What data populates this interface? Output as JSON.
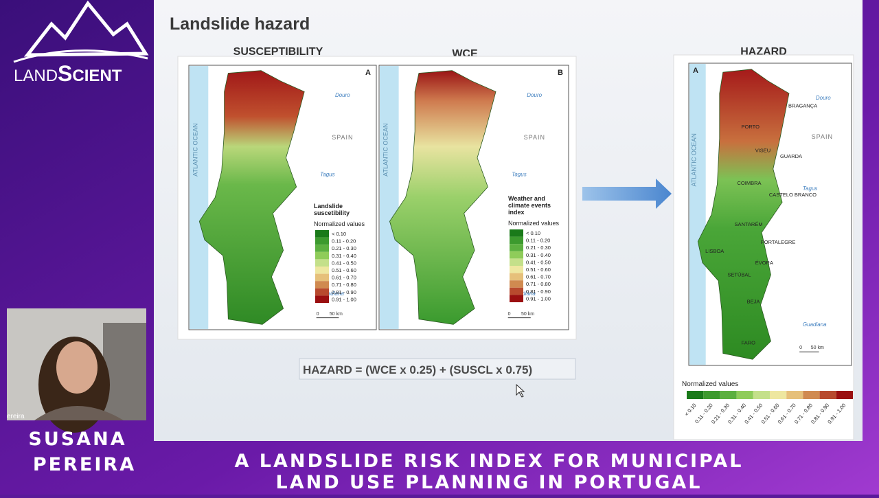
{
  "logo": {
    "part1": "LAND",
    "part2": "S",
    "part3": "CIENT"
  },
  "presenter": {
    "video_label": "ereira",
    "first_name": "SUSANA",
    "last_name": "PEREIRA"
  },
  "banner": {
    "line1": "A LANDSLIDE RISK INDEX FOR MUNICIPAL",
    "line2": "LAND USE PLANNING IN PORTUGAL"
  },
  "slide": {
    "title": "Landslide hazard",
    "formula": "HAZARD = (WCE x 0.25) + (SUSCL x 0.75)",
    "legend_classes": [
      "< 0.10",
      "0.11 - 0.20",
      "0.21 - 0.30",
      "0.31 - 0.40",
      "0.41 - 0.50",
      "0.51 - 0.60",
      "0.61 - 0.70",
      "0.71 - 0.80",
      "0.81 - 0.90",
      "0.91 - 1.00"
    ],
    "legend_subtitle": "Normalized values",
    "ocean_label": "ATLANTIC OCEAN",
    "country_label": "SPAIN",
    "rivers": [
      "Douro",
      "Tagus",
      "Guadiana"
    ],
    "scale_labels": [
      "0",
      "50 km"
    ],
    "panels": [
      {
        "heading": "SUSCEPTIBILITY",
        "letter": "A",
        "legend_title": [
          "Landslide",
          "suscetibility"
        ]
      },
      {
        "heading": "WCE",
        "letter": "B",
        "legend_title": [
          "Weather and",
          "climate events",
          "index"
        ]
      },
      {
        "heading": "HAZARD",
        "letter": "A",
        "cities": [
          "BRAGANÇA",
          "PORTO",
          "VISEU",
          "GUARDA",
          "COIMBRA",
          "CASTELO BRANCO",
          "SANTARÉM",
          "PORTALEGRE",
          "LISBOA",
          "ÉVORA",
          "SETÚBAL",
          "BEJA",
          "FARO"
        ]
      }
    ]
  }
}
